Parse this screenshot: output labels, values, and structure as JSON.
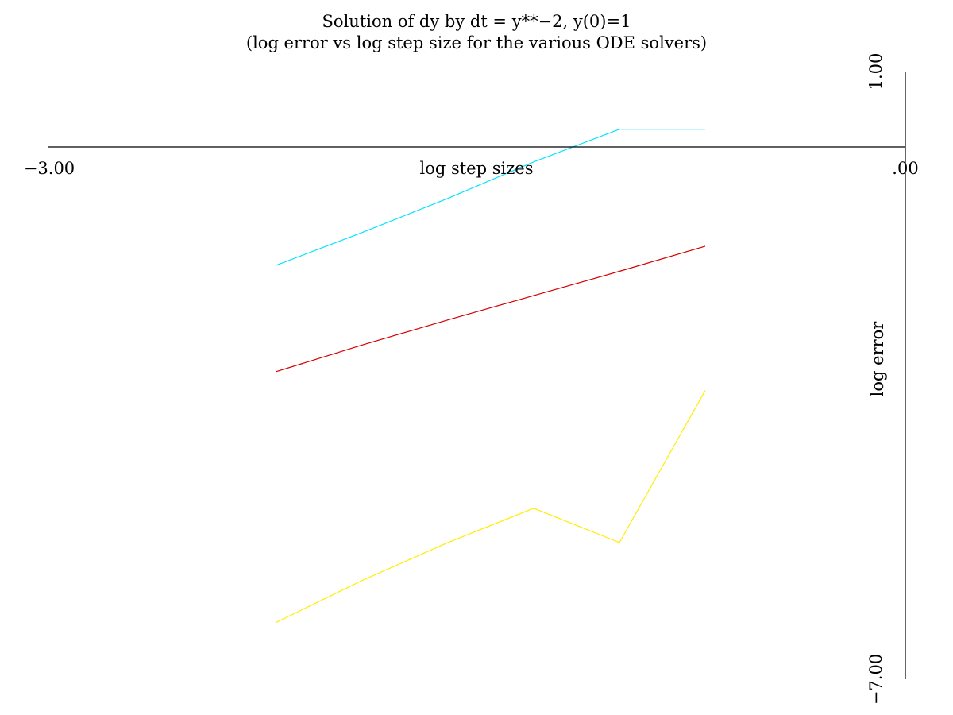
{
  "chart_data": {
    "type": "line",
    "title": "Solution of dy by dt = y**−2, y(0)=1",
    "subtitle": "(log error vs log step size for the various ODE solvers)",
    "xlabel": "log step sizes",
    "ylabel": "log error",
    "xlim": [
      -3.0,
      0.0
    ],
    "ylim": [
      -7.0,
      1.0
    ],
    "x_tick_labels": [
      "−3.00",
      ".00"
    ],
    "y_tick_labels": [
      "1.00",
      "−7.00"
    ],
    "grid": false,
    "series": [
      {
        "color": "#00e5ff",
        "x": [
          -2.2,
          -1.9,
          -1.6,
          -1.3,
          -1.0,
          -0.7
        ],
        "y": [
          -1.55,
          -1.12,
          -0.67,
          -0.19,
          0.24,
          0.24
        ]
      },
      {
        "color": "#d40000",
        "x": [
          -2.2,
          -1.9,
          -1.6,
          -1.3,
          -1.0,
          -0.7
        ],
        "y": [
          -2.95,
          -2.6,
          -2.27,
          -1.95,
          -1.63,
          -1.3
        ]
      },
      {
        "color": "#ffee00",
        "x": [
          -2.2,
          -1.9,
          -1.6,
          -1.3,
          -1.0,
          -0.7
        ],
        "y": [
          -6.25,
          -5.7,
          -5.2,
          -4.75,
          -5.2,
          -3.2
        ]
      }
    ]
  }
}
